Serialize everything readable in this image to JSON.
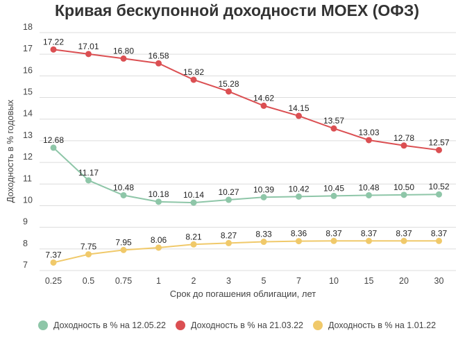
{
  "chart_data": {
    "type": "line",
    "title": "Кривая бескупонной доходности MOEX (ОФЗ)",
    "xlabel": "Срок до погашения облигации, лет",
    "ylabel": "Доходность в % годовых",
    "categories": [
      "0.25",
      "0.5",
      "0.75",
      "1",
      "2",
      "3",
      "5",
      "7",
      "10",
      "15",
      "20",
      "30"
    ],
    "ylim": [
      7,
      18
    ],
    "yticks": [
      "7",
      "8",
      "9",
      "10",
      "11",
      "12",
      "13",
      "14",
      "15",
      "16",
      "17",
      "18"
    ],
    "grid": true,
    "legend_position": "bottom",
    "series": [
      {
        "name": "Доходность в % на 12.05.22",
        "color": "#8ec6a8",
        "values": [
          12.68,
          11.17,
          10.48,
          10.18,
          10.14,
          10.27,
          10.39,
          10.42,
          10.45,
          10.48,
          10.5,
          10.52
        ],
        "labels": [
          "12.68",
          "11.17",
          "10.48",
          "10.18",
          "10.14",
          "10.27",
          "10.39",
          "10.42",
          "10.45",
          "10.48",
          "10.50",
          "10.52"
        ]
      },
      {
        "name": "Доходность в % на 21.03.22",
        "color": "#db4f52",
        "values": [
          17.22,
          17.01,
          16.8,
          16.58,
          15.82,
          15.28,
          14.62,
          14.15,
          13.57,
          13.03,
          12.78,
          12.57
        ],
        "labels": [
          "17.22",
          "17.01",
          "16.80",
          "16.58",
          "15.82",
          "15.28",
          "14.62",
          "14.15",
          "13.57",
          "13.03",
          "12.78",
          "12.57"
        ]
      },
      {
        "name": "Доходность в % на 1.01.22",
        "color": "#f0c96a",
        "values": [
          7.37,
          7.75,
          7.95,
          8.06,
          8.21,
          8.27,
          8.33,
          8.36,
          8.37,
          8.37,
          8.37,
          8.37
        ],
        "labels": [
          "7.37",
          "7.75",
          "7.95",
          "8.06",
          "8.21",
          "8.27",
          "8.33",
          "8.36",
          "8.37",
          "8.37",
          "8.37",
          "8.37"
        ]
      }
    ]
  }
}
